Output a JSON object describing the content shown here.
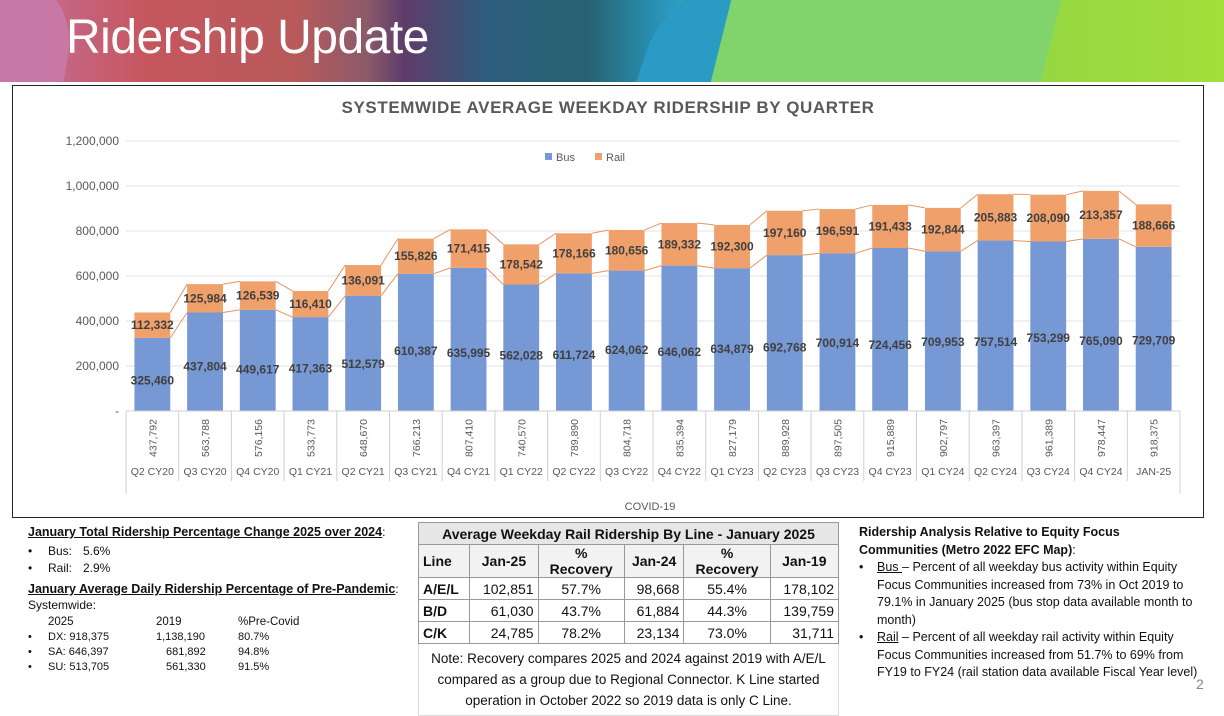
{
  "slide": {
    "title": "Ridership Update",
    "page_number": "2"
  },
  "chart_data": {
    "type": "bar",
    "stacked": true,
    "title": "SYSTEMWIDE AVERAGE WEEKDAY RIDERSHIP BY QUARTER",
    "xlabel": "COVID-19",
    "ylabel": "",
    "ylim": [
      0,
      1200000
    ],
    "yticks": [
      0,
      200000,
      400000,
      600000,
      800000,
      1000000,
      1200000
    ],
    "ytick_labels": [
      "-",
      "200,000",
      "400,000",
      "600,000",
      "800,000",
      "1,000,000",
      "1,200,000"
    ],
    "grid": true,
    "legend": {
      "placement": "top-center",
      "entries": [
        "Bus",
        "Rail"
      ]
    },
    "colors": {
      "Bus": "#7698d4",
      "Rail": "#f0a06a",
      "series_lines": "#e89360"
    },
    "categories": [
      "Q2 CY20",
      "Q3 CY20",
      "Q4 CY20",
      "Q1 CY21",
      "Q2 CY21",
      "Q3 CY21",
      "Q4 CY21",
      "Q1 CY22",
      "Q2 CY22",
      "Q3 CY22",
      "Q4 CY22",
      "Q1 CY23",
      "Q2 CY23",
      "Q3 CY23",
      "Q4 CY23",
      "Q1 CY24",
      "Q2 CY24",
      "Q3 CY24",
      "Q4 CY24",
      "JAN-25"
    ],
    "series": [
      {
        "name": "Bus",
        "values": [
          325460,
          437804,
          449617,
          417363,
          512579,
          610387,
          635995,
          562028,
          611724,
          624062,
          646062,
          634879,
          692768,
          700914,
          724456,
          709953,
          757514,
          753299,
          765090,
          729709
        ],
        "labels": [
          "325,460",
          "437,804",
          "449,617",
          "417,363",
          "512,579",
          "610,387",
          "635,995",
          "562,028",
          "611,724",
          "624,062",
          "646,062",
          "634,879",
          "692,768",
          "700,914",
          "724,456",
          "709,953",
          "757,514",
          "753,299",
          "765,090",
          "729,709"
        ]
      },
      {
        "name": "Rail",
        "values": [
          112332,
          125984,
          126539,
          116410,
          136091,
          155826,
          171415,
          178542,
          178166,
          180656,
          189332,
          192300,
          197160,
          196591,
          191433,
          192844,
          205883,
          208090,
          213357,
          188666
        ],
        "labels": [
          "112,332",
          "125,984",
          "126,539",
          "116,410",
          "136,091",
          "155,826",
          "171,415",
          "178,542",
          "178,166",
          "180,656",
          "189,332",
          "192,300",
          "197,160",
          "196,591",
          "191,433",
          "192,844",
          "205,883",
          "208,090",
          "213,357",
          "188,666"
        ]
      }
    ],
    "totals": [
      437792,
      563788,
      576156,
      533773,
      648670,
      766213,
      807410,
      740570,
      789890,
      804718,
      835394,
      827179,
      889928,
      897505,
      915889,
      902797,
      963397,
      961389,
      978447,
      918375
    ],
    "total_labels": [
      "437,792",
      "563,788",
      "576,156",
      "533,773",
      "648,670",
      "766,213",
      "807,410",
      "740,570",
      "789,890",
      "804,718",
      "835,394",
      "827,179",
      "889,928",
      "897,505",
      "915,889",
      "902,797",
      "963,397",
      "961,389",
      "978,447",
      "918,375"
    ]
  },
  "left_notes": {
    "heading1": "January Total Ridership Percentage Change 2025 over 2024",
    "heading1_suffix": ":",
    "changes": [
      {
        "label": "Bus:",
        "value": "5.6%"
      },
      {
        "label": "Rail:",
        "value": "2.9%"
      }
    ],
    "heading2": "January Average Daily Ridership Percentage of Pre-Pandemic",
    "heading2_suffix": ":",
    "systemwide_label": "Systemwide:",
    "columns": [
      "2025",
      "2019",
      "%Pre-Covid"
    ],
    "rows": [
      {
        "label": "DX:",
        "y2025": "918,375",
        "y2019": "1,138,190",
        "pct": "80.7%"
      },
      {
        "label": "SA:",
        "y2025": "646,397",
        "y2019": "681,892",
        "pct": "94.8%"
      },
      {
        "label": "SU:",
        "y2025": "513,705",
        "y2019": "561,330",
        "pct": "91.5%"
      }
    ],
    "bullet": "•"
  },
  "rail_table": {
    "caption": "Average Weekday Rail Ridership By Line - January 2025",
    "headers": [
      "Line",
      "Jan-25",
      "% Recovery",
      "Jan-24",
      "% Recovery",
      "Jan-19"
    ],
    "rows": [
      [
        "A/E/L",
        "102,851",
        "57.7%",
        "98,668",
        "55.4%",
        "178,102"
      ],
      [
        "B/D",
        "61,030",
        "43.7%",
        "61,884",
        "44.3%",
        "139,759"
      ],
      [
        "C/K",
        "24,785",
        "78.2%",
        "23,134",
        "73.0%",
        "31,711"
      ]
    ],
    "note": "Note: Recovery compares 2025 and 2024 against 2019 with A/E/L compared as a group due to Regional Connector. K Line started operation in October 2022 so 2019 data is only C Line."
  },
  "right_notes": {
    "heading": "Ridership Analysis Relative to Equity Focus Communities (Metro 2022 EFC Map)",
    "heading_suffix": ":",
    "items": [
      {
        "label": "Bus ",
        "text": "– Percent of all weekday bus activity within Equity Focus Communities increased from 73% in Oct 2019 to 79.1% in January 2025 (bus stop data available month to month)"
      },
      {
        "label": "Rail",
        "text": " – Percent of all weekday rail activity within Equity Focus Communities increased from 51.7% to 69% from FY19 to FY24 (rail station data available Fiscal Year level)"
      }
    ],
    "bullet": "•"
  }
}
